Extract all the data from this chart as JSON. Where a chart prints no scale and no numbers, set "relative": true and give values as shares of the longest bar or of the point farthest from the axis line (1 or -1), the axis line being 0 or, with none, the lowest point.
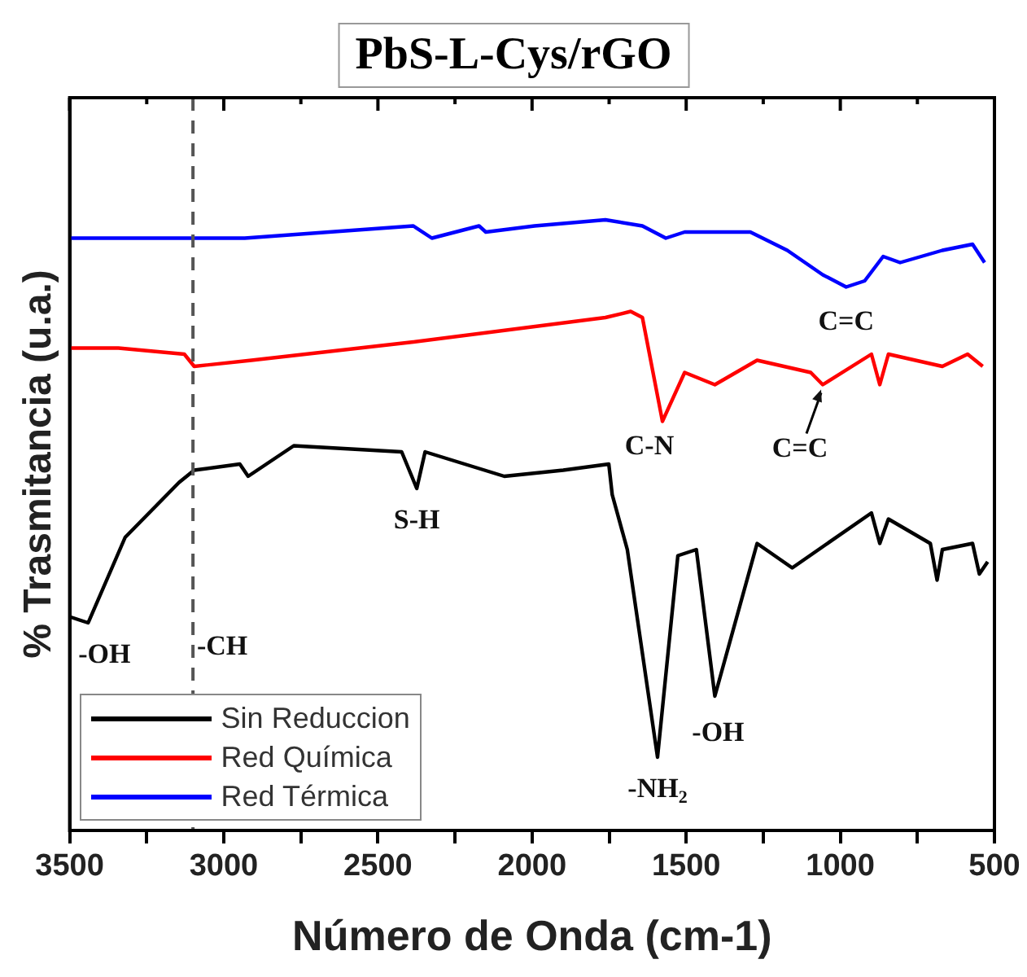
{
  "chart_data": {
    "type": "line",
    "title": "PbS-L-Cys/rGO",
    "xlabel": "Número de Onda (cm-1)",
    "ylabel": "% Trasmitancia (u.a.)",
    "relative": true,
    "legend": "bottom left",
    "marker": "none",
    "line_style": "solid",
    "grid": false,
    "xlim": [
      3500,
      500
    ],
    "xticks": [
      3500,
      {
        "value": 3250,
        "label": null
      },
      3000,
      {
        "value": 2750,
        "label": null
      },
      2500,
      {
        "value": 2250,
        "label": null
      },
      2000,
      {
        "value": 1750,
        "label": null
      },
      1500,
      {
        "value": 1250,
        "label": null
      },
      1000,
      {
        "value": 750,
        "label": null
      },
      500
    ],
    "series": [
      {
        "name": "Sin Reduccion",
        "color": "#000000",
        "x": [
          3500,
          3440,
          3320,
          3145,
          3096,
          2948,
          2921,
          2773,
          2423,
          2374,
          2347,
          2090,
          1899,
          1751,
          1740,
          1691,
          1593,
          1527,
          1467,
          1407,
          1270,
          1156,
          899,
          872,
          844,
          708,
          686,
          669,
          571,
          549,
          522
        ],
        "values": [
          0.35,
          0.34,
          0.48,
          0.57,
          0.59,
          0.6,
          0.58,
          0.63,
          0.62,
          0.56,
          0.62,
          0.58,
          0.59,
          0.6,
          0.55,
          0.46,
          0.12,
          0.45,
          0.46,
          0.22,
          0.47,
          0.43,
          0.52,
          0.47,
          0.51,
          0.47,
          0.41,
          0.46,
          0.47,
          0.42,
          0.44
        ]
      },
      {
        "name": "Red Química",
        "color": "#ff0000",
        "x": [
          3500,
          3342,
          3128,
          3096,
          2910,
          2385,
          1762,
          1680,
          1642,
          1577,
          1505,
          1407,
          1270,
          1096,
          1057,
          899,
          872,
          844,
          669,
          587,
          538
        ],
        "values": [
          0.79,
          0.79,
          0.78,
          0.76,
          0.77,
          0.8,
          0.84,
          0.85,
          0.84,
          0.67,
          0.75,
          0.73,
          0.77,
          0.75,
          0.73,
          0.78,
          0.73,
          0.78,
          0.76,
          0.78,
          0.76
        ]
      },
      {
        "name": "Red Térmica",
        "color": "#0000ff",
        "x": [
          3500,
          3107,
          2932,
          2385,
          2325,
          2172,
          2150,
          1992,
          1762,
          1642,
          1566,
          1505,
          1292,
          1172,
          1057,
          981,
          921,
          861,
          806,
          669,
          571,
          532
        ],
        "values": [
          0.97,
          0.97,
          0.97,
          0.99,
          0.97,
          0.99,
          0.98,
          0.99,
          1.0,
          0.99,
          0.97,
          0.98,
          0.98,
          0.95,
          0.91,
          0.89,
          0.9,
          0.94,
          0.93,
          0.95,
          0.96,
          0.93
        ]
      }
    ],
    "ref_lines": [
      {
        "axis": "x",
        "value": 3100,
        "color": "#555555",
        "line_style": "dashed"
      }
    ],
    "annotations": [
      {
        "text": "-OH",
        "x": 3440,
        "y": 0.34
      },
      {
        "text": "-CH",
        "x": 3100,
        "y": 0.3
      },
      {
        "text": "S-H",
        "x": 2374,
        "y": 0.56
      },
      {
        "text": "C-N",
        "x": 1577,
        "y": 0.67
      },
      {
        "text": "C=C",
        "x": 1057,
        "y": 0.73
      },
      {
        "text": "C=C",
        "x": 981,
        "y": 0.89
      },
      {
        "text": "-OH",
        "x": 1407,
        "y": 0.22
      },
      {
        "text": "-NH$_{2}$",
        "x": 1593,
        "y": 0.12
      }
    ]
  }
}
